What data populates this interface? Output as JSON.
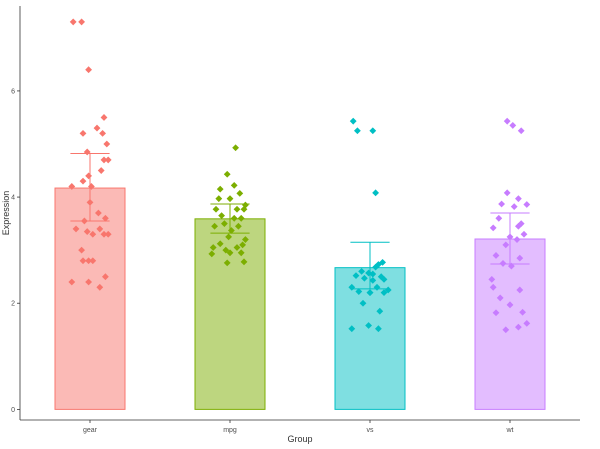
{
  "chart_data": {
    "type": "bar",
    "xlabel": "Group",
    "ylabel": "Expression",
    "ylim": [
      -0.2,
      7.6
    ],
    "yticks": [
      0,
      2,
      4,
      6
    ],
    "grid": false,
    "legend": "none",
    "categories": [
      "gear",
      "mpg",
      "vs",
      "wt"
    ],
    "values": [
      4.17,
      3.59,
      2.67,
      3.21
    ],
    "error": [
      {
        "low": 3.55,
        "high": 4.82
      },
      {
        "low": 3.32,
        "high": 3.87
      },
      {
        "low": 2.27,
        "high": 3.15
      },
      {
        "low": 2.74,
        "high": 3.7
      }
    ],
    "colors": {
      "gear": {
        "fill": "#f8766d",
        "line": "#f8766d"
      },
      "mpg": {
        "fill": "#7cae00",
        "line": "#7cae00"
      },
      "vs": {
        "fill": "#00bfc4",
        "line": "#00bfc4"
      },
      "wt": {
        "fill": "#c77cff",
        "line": "#c77cff"
      }
    },
    "points": {
      "gear": [
        [
          -0.12,
          7.3
        ],
        [
          -0.06,
          7.3
        ],
        [
          -0.01,
          6.4
        ],
        [
          0.1,
          5.5
        ],
        [
          0.05,
          5.3
        ],
        [
          -0.05,
          5.2
        ],
        [
          0.09,
          5.2
        ],
        [
          0.12,
          5.0
        ],
        [
          -0.02,
          4.85
        ],
        [
          0.1,
          4.7
        ],
        [
          0.13,
          4.7
        ],
        [
          0.08,
          4.5
        ],
        [
          -0.01,
          4.4
        ],
        [
          -0.05,
          4.3
        ],
        [
          -0.13,
          4.2
        ],
        [
          0.01,
          4.2
        ],
        [
          0.0,
          3.9
        ],
        [
          0.06,
          3.7
        ],
        [
          0.11,
          3.6
        ],
        [
          -0.04,
          3.55
        ],
        [
          -0.1,
          3.4
        ],
        [
          0.07,
          3.4
        ],
        [
          -0.02,
          3.35
        ],
        [
          0.02,
          3.3
        ],
        [
          0.1,
          3.3
        ],
        [
          0.13,
          3.3
        ],
        [
          -0.06,
          3.0
        ],
        [
          -0.01,
          2.8
        ],
        [
          -0.05,
          2.8
        ],
        [
          0.02,
          2.8
        ],
        [
          0.11,
          2.5
        ],
        [
          -0.13,
          2.4
        ],
        [
          -0.01,
          2.4
        ],
        [
          0.07,
          2.3
        ]
      ],
      "mpg": [
        [
          0.04,
          4.93
        ],
        [
          -0.02,
          4.43
        ],
        [
          0.03,
          4.22
        ],
        [
          -0.07,
          4.15
        ],
        [
          0.07,
          4.07
        ],
        [
          -0.08,
          3.97
        ],
        [
          0.0,
          3.97
        ],
        [
          0.11,
          3.85
        ],
        [
          -0.1,
          3.77
        ],
        [
          0.05,
          3.77
        ],
        [
          0.1,
          3.77
        ],
        [
          -0.06,
          3.65
        ],
        [
          0.03,
          3.6
        ],
        [
          0.08,
          3.6
        ],
        [
          -0.04,
          3.5
        ],
        [
          -0.11,
          3.45
        ],
        [
          0.06,
          3.45
        ],
        [
          0.01,
          3.37
        ],
        [
          -0.01,
          3.25
        ],
        [
          0.11,
          3.2
        ],
        [
          -0.07,
          3.12
        ],
        [
          0.09,
          3.1
        ],
        [
          -0.12,
          3.05
        ],
        [
          0.05,
          3.05
        ],
        [
          -0.03,
          3.0
        ],
        [
          0.0,
          2.95
        ],
        [
          0.08,
          2.95
        ],
        [
          -0.13,
          2.93
        ],
        [
          0.1,
          2.78
        ],
        [
          -0.02,
          2.76
        ]
      ],
      "vs": [
        [
          -0.12,
          5.43
        ],
        [
          -0.09,
          5.25
        ],
        [
          0.02,
          5.25
        ],
        [
          0.04,
          4.08
        ],
        [
          0.09,
          2.77
        ],
        [
          0.06,
          2.73
        ],
        [
          0.04,
          2.68
        ],
        [
          -0.06,
          2.6
        ],
        [
          -0.01,
          2.57
        ],
        [
          0.02,
          2.55
        ],
        [
          -0.1,
          2.52
        ],
        [
          0.08,
          2.5
        ],
        [
          -0.04,
          2.47
        ],
        [
          0.1,
          2.45
        ],
        [
          0.02,
          2.43
        ],
        [
          -0.13,
          2.3
        ],
        [
          0.05,
          2.3
        ],
        [
          0.13,
          2.25
        ],
        [
          -0.08,
          2.22
        ],
        [
          0.0,
          2.2
        ],
        [
          0.1,
          2.2
        ],
        [
          -0.05,
          2.0
        ],
        [
          0.07,
          1.85
        ],
        [
          -0.13,
          1.52
        ],
        [
          -0.01,
          1.58
        ],
        [
          0.06,
          1.52
        ],
        [
          0.0,
          2.2
        ]
      ],
      "wt": [
        [
          -0.02,
          5.43
        ],
        [
          0.02,
          5.35
        ],
        [
          0.08,
          5.25
        ],
        [
          -0.02,
          4.08
        ],
        [
          0.06,
          3.97
        ],
        [
          -0.06,
          3.87
        ],
        [
          0.12,
          3.86
        ],
        [
          0.03,
          3.82
        ],
        [
          -0.08,
          3.6
        ],
        [
          0.08,
          3.5
        ],
        [
          0.06,
          3.45
        ],
        [
          -0.12,
          3.42
        ],
        [
          0.1,
          3.3
        ],
        [
          0.0,
          3.25
        ],
        [
          0.05,
          3.2
        ],
        [
          -0.03,
          3.1
        ],
        [
          -0.1,
          2.9
        ],
        [
          0.07,
          2.85
        ],
        [
          -0.05,
          2.75
        ],
        [
          0.01,
          2.7
        ],
        [
          -0.13,
          2.45
        ],
        [
          0.07,
          2.25
        ],
        [
          -0.12,
          2.3
        ],
        [
          -0.07,
          2.1
        ],
        [
          0.0,
          1.97
        ],
        [
          0.09,
          1.83
        ],
        [
          -0.1,
          1.82
        ],
        [
          0.12,
          1.62
        ],
        [
          0.06,
          1.55
        ],
        [
          -0.03,
          1.5
        ]
      ]
    }
  }
}
